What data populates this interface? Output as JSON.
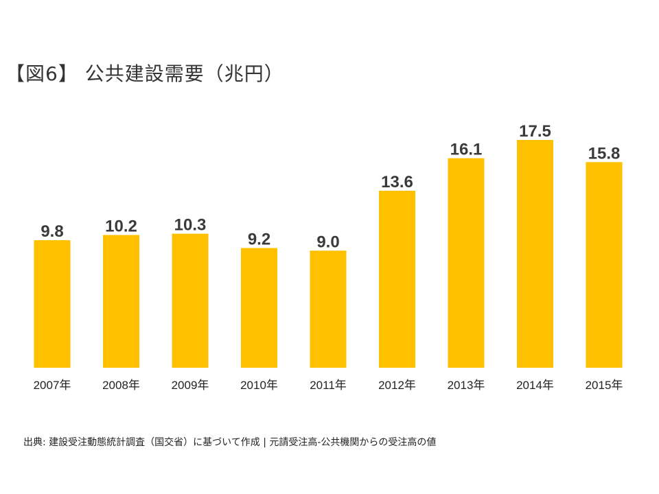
{
  "title": "【図6】 公共建設需要（兆円）",
  "source_note": "出典: 建設受注動態統計調査（国交省）に基づいて作成 | 元請受注高-公共機関からの受注高の値",
  "colors": {
    "bar": "#FFC000",
    "value_label": "#3a3a3a",
    "tick_label": "#222222"
  },
  "chart_data": {
    "type": "bar",
    "title": "【図6】 公共建設需要（兆円）",
    "xlabel": "",
    "ylabel": "",
    "categories": [
      "2007年",
      "2008年",
      "2009年",
      "2010年",
      "2011年",
      "2012年",
      "2013年",
      "2014年",
      "2015年"
    ],
    "values": [
      9.8,
      10.2,
      10.3,
      9.2,
      9.0,
      13.6,
      16.1,
      17.5,
      15.8
    ],
    "value_labels": [
      "9.8",
      "10.2",
      "10.3",
      "9.2",
      "9.0",
      "13.6",
      "16.1",
      "17.5",
      "15.8"
    ],
    "ylim": [
      0,
      17.5
    ],
    "grid": false,
    "legend": "none"
  }
}
